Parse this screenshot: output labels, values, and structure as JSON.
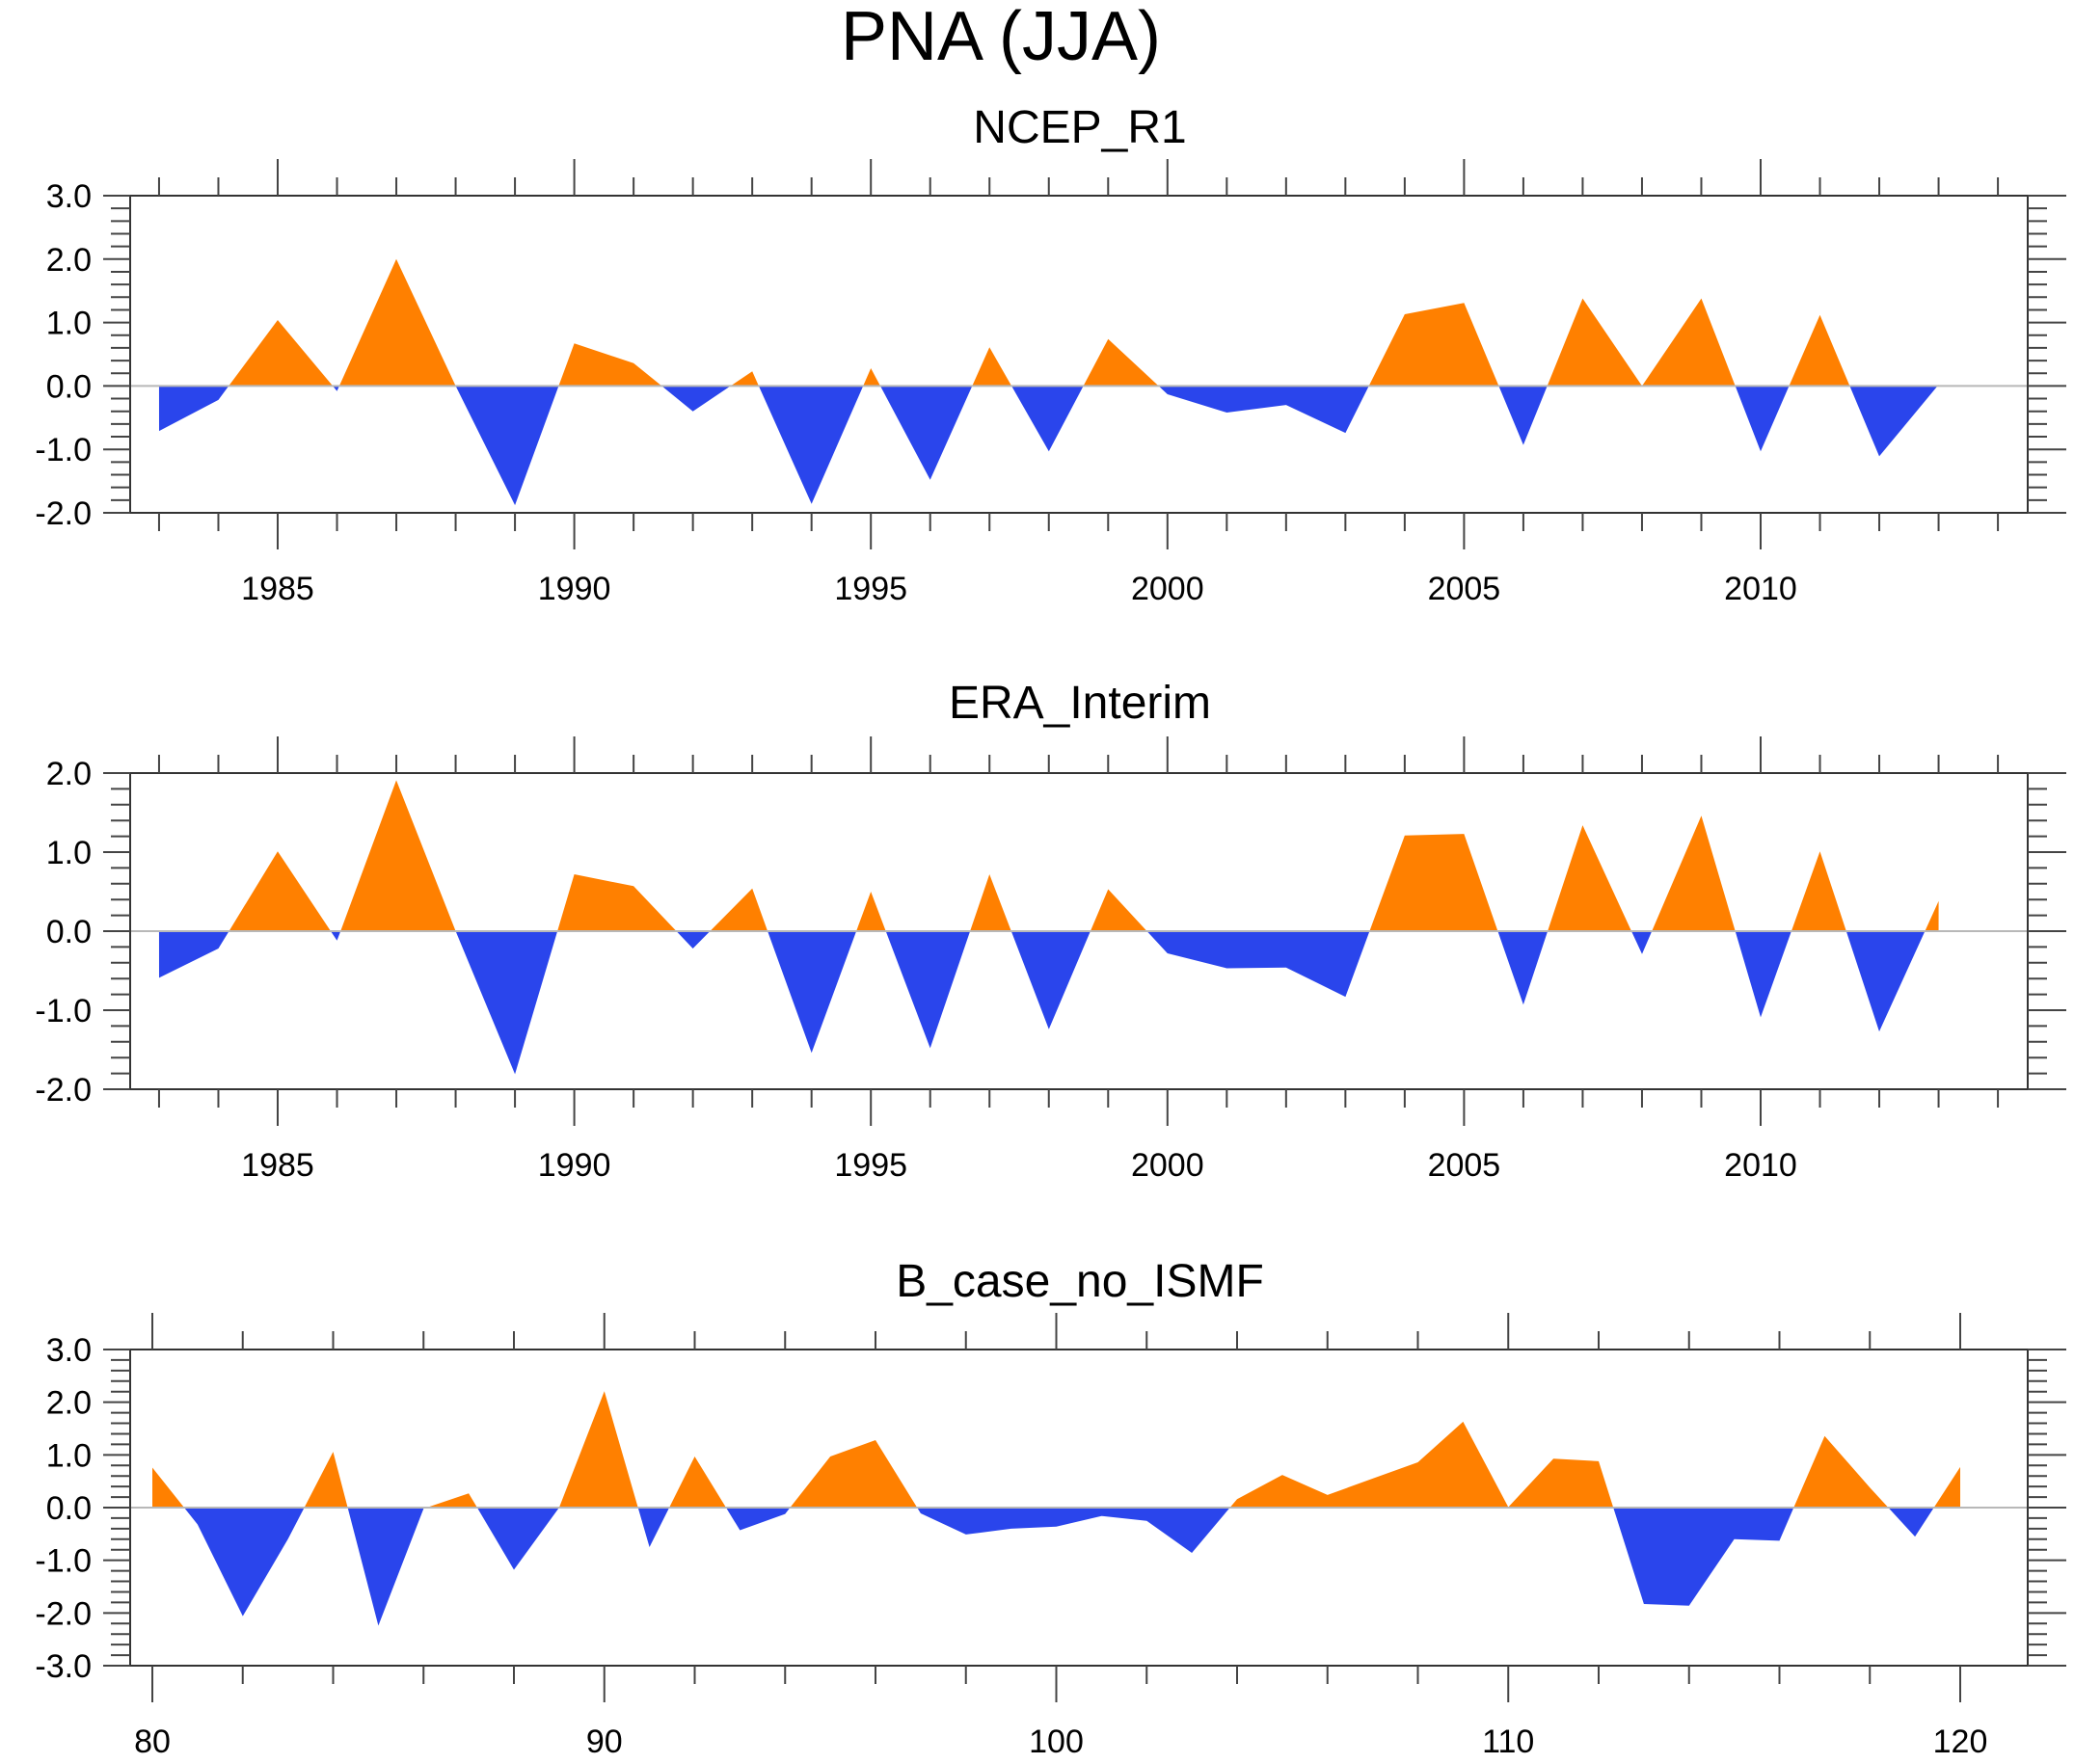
{
  "figure": {
    "title": "PNA (JJA)"
  },
  "colors": {
    "positive": "#ff8000",
    "negative": "#2a45ec",
    "zero_line": "#b8b8b8",
    "axes": "#333333"
  },
  "chart_data": [
    {
      "type": "area",
      "title": "NCEP_R1",
      "xlabel": "",
      "ylabel": "",
      "xlim": [
        1982.5,
        2014.5
      ],
      "ylim": [
        -2.0,
        3.0
      ],
      "x_major_ticks": [
        1985,
        1990,
        1995,
        2000,
        2005,
        2010
      ],
      "x_tick_labels": [
        "1985",
        "1990",
        "1995",
        "2000",
        "2005",
        "2010"
      ],
      "x_minor_step": 1,
      "y_major_ticks": [
        -2.0,
        -1.0,
        0.0,
        1.0,
        2.0,
        3.0
      ],
      "y_tick_labels": [
        "-2.0",
        "-1.0",
        "0.0",
        "1.0",
        "2.0",
        "3.0"
      ],
      "y_minor_step": 0.2,
      "fill_above_zero": "orange",
      "fill_below_zero": "blue",
      "grid": false,
      "x": [
        1983,
        1984,
        1985,
        1986,
        1987,
        1988,
        1989,
        1990,
        1991,
        1992,
        1993,
        1994,
        1995,
        1996,
        1997,
        1998,
        1999,
        2000,
        2001,
        2002,
        2003,
        2004,
        2005,
        2006,
        2007,
        2008,
        2009,
        2010,
        2011,
        2012,
        2013
      ],
      "values": [
        -0.71,
        -0.22,
        1.04,
        -0.08,
        2.0,
        0.0,
        -1.88,
        0.67,
        0.36,
        -0.4,
        0.23,
        -1.86,
        0.28,
        -1.48,
        0.61,
        -1.03,
        0.74,
        -0.13,
        -0.42,
        -0.3,
        -0.74,
        1.13,
        1.31,
        -0.93,
        1.38,
        0.0,
        1.38,
        -1.03,
        1.12,
        -1.11,
        0.02
      ]
    },
    {
      "type": "area",
      "title": "ERA_Interim",
      "xlabel": "",
      "ylabel": "",
      "xlim": [
        1982.5,
        2014.5
      ],
      "ylim": [
        -2.0,
        2.0
      ],
      "x_major_ticks": [
        1985,
        1990,
        1995,
        2000,
        2005,
        2010
      ],
      "x_tick_labels": [
        "1985",
        "1990",
        "1995",
        "2000",
        "2005",
        "2010"
      ],
      "x_minor_step": 1,
      "y_major_ticks": [
        -2.0,
        -1.0,
        0.0,
        1.0,
        2.0
      ],
      "y_tick_labels": [
        "-2.0",
        "-1.0",
        "0.0",
        "1.0",
        "2.0"
      ],
      "y_minor_step": 0.2,
      "fill_above_zero": "orange",
      "fill_below_zero": "blue",
      "grid": false,
      "x": [
        1983,
        1984,
        1985,
        1986,
        1987,
        1988,
        1989,
        1990,
        1991,
        1992,
        1993,
        1994,
        1995,
        1996,
        1997,
        1998,
        1999,
        2000,
        2001,
        2002,
        2003,
        2004,
        2005,
        2006,
        2007,
        2008,
        2009,
        2010,
        2011,
        2012,
        2013
      ],
      "values": [
        -0.59,
        -0.22,
        1.01,
        -0.12,
        1.91,
        0.0,
        -1.81,
        0.72,
        0.57,
        -0.22,
        0.54,
        -1.54,
        0.5,
        -1.48,
        0.72,
        -1.24,
        0.53,
        -0.28,
        -0.47,
        -0.46,
        -0.83,
        1.21,
        1.23,
        -0.93,
        1.34,
        -0.29,
        1.46,
        -1.09,
        1.01,
        -1.27,
        0.38
      ]
    },
    {
      "type": "area",
      "title": "B_case_no_ISMF",
      "xlabel": "",
      "ylabel": "",
      "xlim": [
        79.5,
        120.5
      ],
      "ylim": [
        -3.0,
        3.0
      ],
      "x_major_ticks": [
        80,
        90,
        100,
        110,
        120
      ],
      "x_tick_labels": [
        "80",
        "90",
        "100",
        "110",
        "120"
      ],
      "x_minor_step": 2,
      "y_major_ticks": [
        -3.0,
        -2.0,
        -1.0,
        0.0,
        1.0,
        2.0,
        3.0
      ],
      "y_tick_labels": [
        "-3.0",
        "-2.0",
        "-1.0",
        "0.0",
        "1.0",
        "2.0",
        "3.0"
      ],
      "y_minor_step": 0.2,
      "fill_above_zero": "orange",
      "fill_below_zero": "blue",
      "grid": false,
      "x": [
        80,
        81,
        82,
        83,
        84,
        85,
        86,
        87,
        88,
        89,
        90,
        91,
        92,
        93,
        94,
        95,
        96,
        97,
        98,
        99,
        100,
        101,
        102,
        103,
        104,
        105,
        106,
        107,
        108,
        109,
        110,
        111,
        112,
        113,
        114,
        115,
        116,
        117,
        118,
        119,
        120
      ],
      "values": [
        0.76,
        -0.32,
        -2.06,
        -0.6,
        1.06,
        -2.24,
        -0.02,
        0.27,
        -1.18,
        0.0,
        2.21,
        -0.75,
        0.97,
        -0.43,
        -0.12,
        0.97,
        1.28,
        -0.11,
        -0.51,
        -0.4,
        -0.36,
        -0.16,
        -0.25,
        -0.86,
        0.16,
        0.62,
        0.24,
        0.55,
        0.86,
        1.63,
        0.01,
        0.93,
        0.88,
        -1.83,
        -1.86,
        -0.6,
        -0.63,
        1.36,
        0.38,
        -0.55,
        0.77
      ]
    }
  ]
}
